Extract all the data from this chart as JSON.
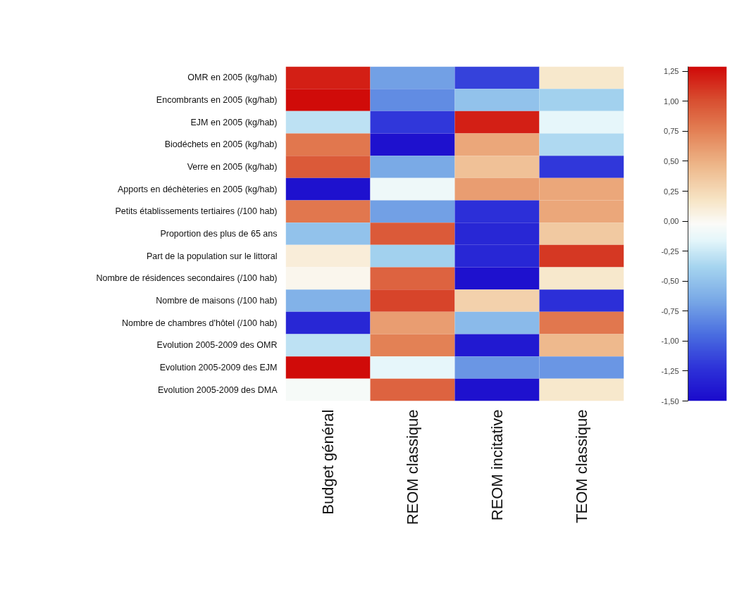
{
  "chart_data": {
    "type": "heatmap",
    "categories": [
      "Budget général",
      "REOM classique",
      "REOM incitative",
      "TEOM classique"
    ],
    "y_categories": [
      "OMR en 2005 (kg/hab)",
      "Encombrants en 2005 (kg/hab)",
      "EJM en 2005 (kg/hab)",
      "Biodéchets en 2005 (kg/hab)",
      "Verre en 2005 (kg/hab)",
      "Apports en déchèteries en 2005 (kg/hab)",
      "Petits établissements tertiaires (/100 hab)",
      "Proportion des plus de 65 ans",
      "Part de la population sur le littoral",
      "Nombre de résidences secondaires (/100 hab)",
      "Nombre de maisons (/100 hab)",
      "Nombre de chambres d'hôtel (/100 hab)",
      "Evolution 2005-2009 des OMR",
      "Evolution 2005-2009 des EJM",
      "Evolution 2005-2009 des DMA"
    ],
    "cells": [
      [
        1.2,
        -0.7,
        -1.15,
        0.15
      ],
      [
        1.28,
        -0.8,
        -0.5,
        -0.4
      ],
      [
        -0.3,
        -1.2,
        1.2,
        -0.15
      ],
      [
        0.8,
        -1.45,
        0.55,
        -0.35
      ],
      [
        0.95,
        -0.65,
        0.4,
        -1.2
      ],
      [
        -1.45,
        -0.1,
        0.6,
        0.55
      ],
      [
        0.8,
        -0.7,
        -1.25,
        0.55
      ],
      [
        -0.5,
        0.95,
        -1.3,
        0.35
      ],
      [
        0.1,
        -0.4,
        -1.3,
        1.1
      ],
      [
        0.02,
        0.9,
        -1.45,
        0.15
      ],
      [
        -0.6,
        1.05,
        0.3,
        -1.25
      ],
      [
        -1.3,
        0.6,
        -0.55,
        0.8
      ],
      [
        -0.3,
        0.75,
        -1.4,
        0.45
      ],
      [
        1.28,
        -0.15,
        -0.75,
        -0.75
      ],
      [
        -0.05,
        0.9,
        -1.45,
        0.15
      ]
    ],
    "clim": [
      -1.5,
      1.29
    ],
    "cticks": [
      {
        "value": 1.25,
        "label": "1,25"
      },
      {
        "value": 1.0,
        "label": "1,00"
      },
      {
        "value": 0.75,
        "label": "0,75"
      },
      {
        "value": 0.5,
        "label": "0,50"
      },
      {
        "value": 0.25,
        "label": "0,25"
      },
      {
        "value": 0.0,
        "label": "0,00"
      },
      {
        "value": -0.25,
        "label": "-0,25"
      },
      {
        "value": -0.5,
        "label": "-0,50"
      },
      {
        "value": -0.75,
        "label": "-0,75"
      },
      {
        "value": -1.0,
        "label": "-1,00"
      },
      {
        "value": -1.25,
        "label": "-1,25"
      },
      {
        "value": -1.5,
        "label": "-1,50"
      }
    ]
  }
}
